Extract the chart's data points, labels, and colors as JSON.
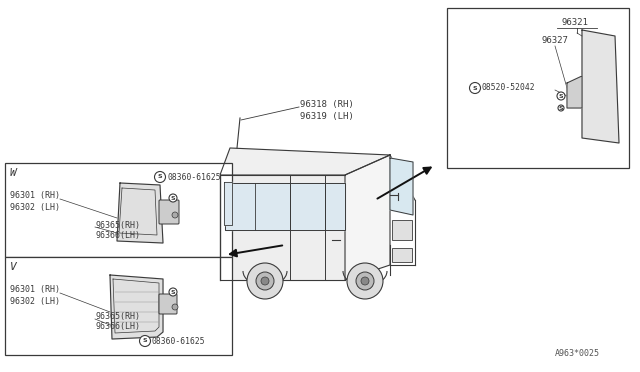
{
  "bg_color": "#ffffff",
  "line_color": "#3a3a3a",
  "text_color": "#3a3a3a",
  "box_line_color": "#3a3a3a",
  "arrow_color": "#111111",
  "part_label": "A963*0025",
  "label_96318": "96318 (RH)",
  "label_96319": "96319 (LH)",
  "left_box_w_label": "W",
  "left_box_v_label": "V",
  "lw_part1": "96301 (RH)",
  "lw_part2": "96302 (LH)",
  "lw_part3": "96365(RH)",
  "lw_part4": "96366(LH)",
  "lw_screw": "08360-61625",
  "lv_part1": "96301 (RH)",
  "lv_part2": "96302 (LH)",
  "lv_part3": "96365(RH)",
  "lv_part4": "96366(LH)",
  "lv_screw": "08360-61625",
  "rb_part1": "96321",
  "rb_part2": "96327",
  "rb_screw": "08520-52042"
}
